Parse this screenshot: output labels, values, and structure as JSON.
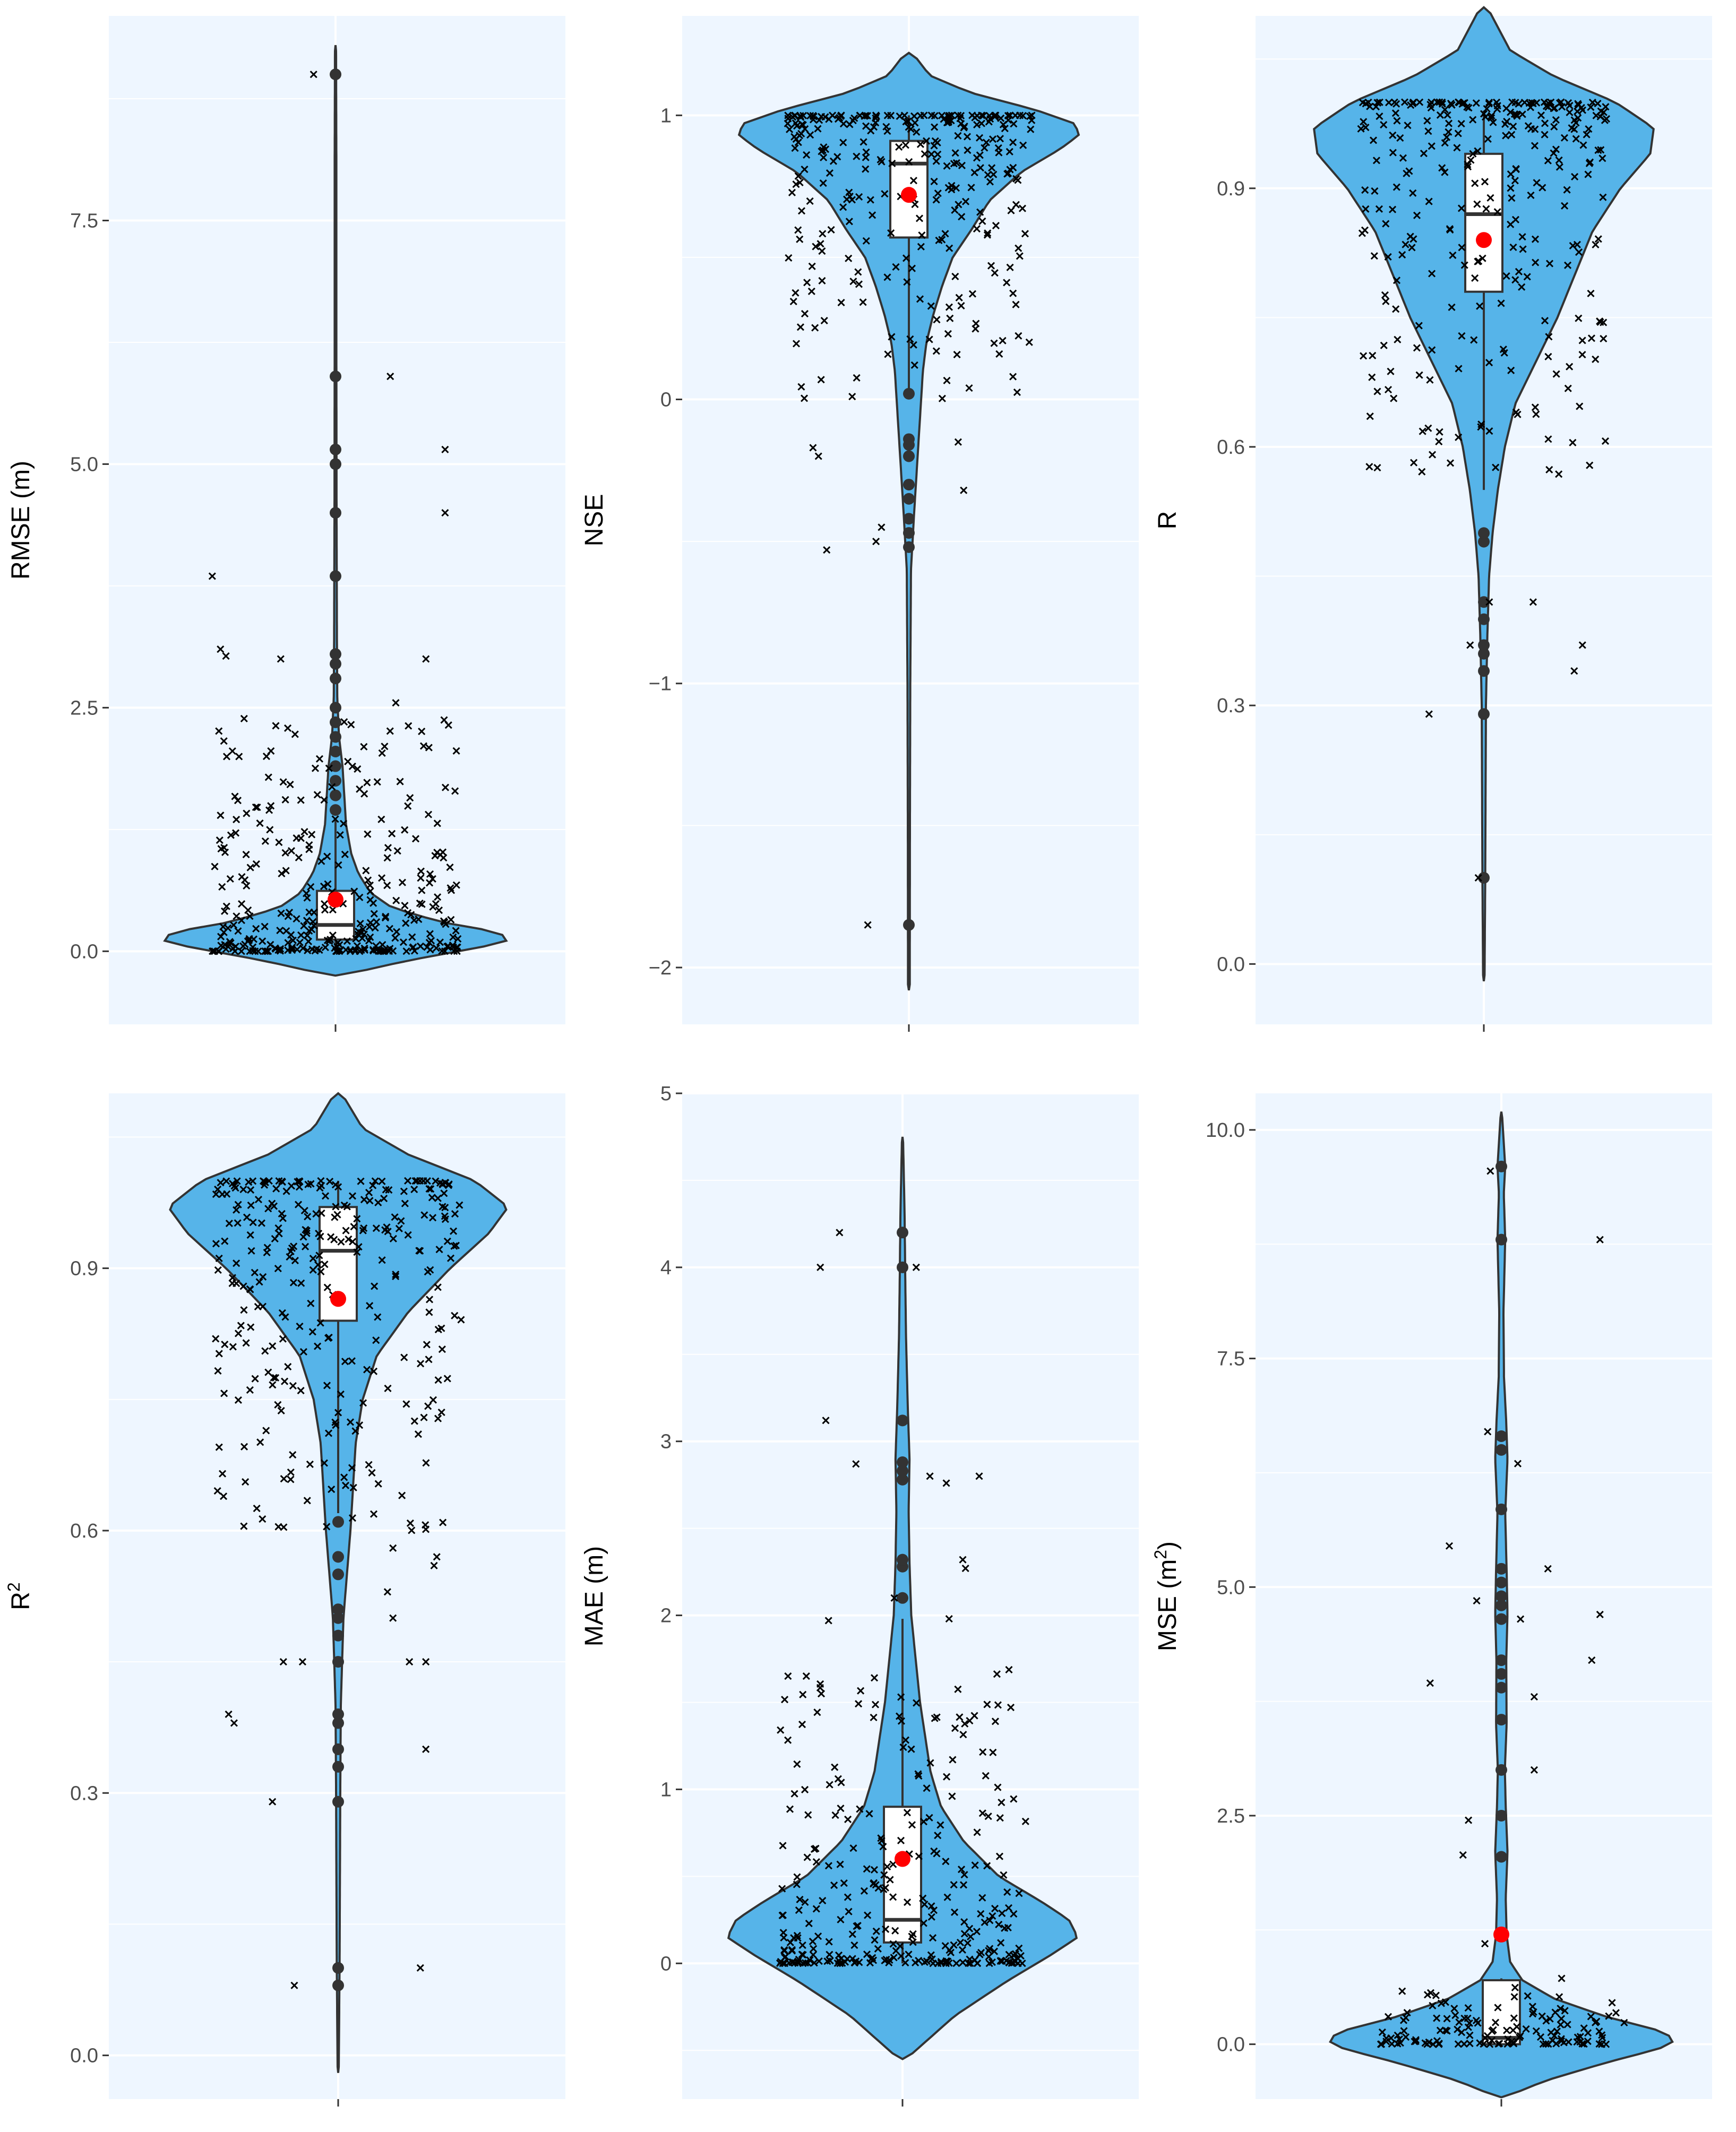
{
  "colors": {
    "panel_background": "#eef6ff",
    "grid": "#ffffff",
    "violin_fill": "#56b4e9",
    "violin_outline": "#333333",
    "box_fill": "#ffffff",
    "mean_point": "#ff0000",
    "jitter": "#000000"
  },
  "chart_data": [
    {
      "type": "violin",
      "ylabel": "RMSE (m)",
      "ylabel_sup": "",
      "ylim": [
        -0.75,
        9.6
      ],
      "yticks": [
        0,
        2.5,
        5,
        7.5
      ],
      "ytick_labels": [
        "0.0",
        "2.5",
        "5.0",
        "7.5"
      ],
      "violin_range": [
        -0.25,
        9.3
      ],
      "density_profile": [
        [
          -0.25,
          0.03
        ],
        [
          -0.1,
          0.4
        ],
        [
          0.05,
          0.85
        ],
        [
          0.12,
          1.0
        ],
        [
          0.2,
          0.92
        ],
        [
          0.3,
          0.6
        ],
        [
          0.45,
          0.32
        ],
        [
          0.6,
          0.2
        ],
        [
          0.8,
          0.13
        ],
        [
          1.0,
          0.09
        ],
        [
          1.3,
          0.06
        ],
        [
          1.6,
          0.05
        ],
        [
          1.9,
          0.04
        ],
        [
          2.2,
          0.02
        ],
        [
          2.6,
          0.01
        ],
        [
          3.2,
          0.008
        ],
        [
          4.5,
          0.006
        ],
        [
          6.0,
          0.005
        ],
        [
          8.0,
          0.005
        ],
        [
          9.3,
          0.003
        ]
      ],
      "box": {
        "q1": 0.12,
        "median": 0.27,
        "q3": 0.62,
        "whisker_low": 0.0,
        "whisker_high": 1.35
      },
      "mean": 0.53,
      "outliers": [
        1.45,
        1.6,
        1.75,
        1.9,
        2.05,
        2.2,
        2.35,
        2.5,
        2.8,
        2.95,
        3.05,
        3.85,
        4.5,
        5.0,
        5.15,
        5.9,
        9.0
      ],
      "jitter": {
        "count": 330,
        "seed": 11,
        "min": 0.0,
        "max": 2.4,
        "skew": 3.2,
        "width": 0.45,
        "extra": [
          [
            -0.45,
            3.85
          ],
          [
            -0.42,
            3.1
          ],
          [
            -0.4,
            3.03
          ],
          [
            -0.2,
            3.0
          ],
          [
            0.2,
            5.9
          ],
          [
            0.33,
            3.0
          ],
          [
            0.4,
            4.5
          ],
          [
            0.4,
            5.15
          ],
          [
            -0.08,
            9.0
          ],
          [
            0.22,
            2.55
          ]
        ]
      }
    },
    {
      "type": "violin",
      "ylabel": "NSE",
      "ylabel_sup": "",
      "ylim": [
        -2.2,
        1.35
      ],
      "yticks": [
        -2,
        -1,
        0,
        1
      ],
      "ytick_labels": [
        "−2",
        "−1",
        "0",
        "1"
      ],
      "violin_range": [
        -2.08,
        1.22
      ],
      "density_profile": [
        [
          -2.08,
          0.005
        ],
        [
          -1.5,
          0.006
        ],
        [
          -1.0,
          0.008
        ],
        [
          -0.6,
          0.012
        ],
        [
          -0.4,
          0.03
        ],
        [
          -0.2,
          0.05
        ],
        [
          0.0,
          0.07
        ],
        [
          0.1,
          0.08
        ],
        [
          0.2,
          0.1
        ],
        [
          0.3,
          0.14
        ],
        [
          0.4,
          0.19
        ],
        [
          0.5,
          0.25
        ],
        [
          0.6,
          0.36
        ],
        [
          0.7,
          0.46
        ],
        [
          0.8,
          0.64
        ],
        [
          0.88,
          0.86
        ],
        [
          0.93,
          0.97
        ],
        [
          0.97,
          0.95
        ],
        [
          1.02,
          0.72
        ],
        [
          1.08,
          0.35
        ],
        [
          1.14,
          0.12
        ],
        [
          1.22,
          0.02
        ]
      ],
      "box": {
        "q1": 0.57,
        "median": 0.83,
        "q3": 0.91,
        "whisker_low": 0.03,
        "whisker_high": 1.0
      },
      "mean": 0.72,
      "outliers": [
        -1.85,
        -0.52,
        -0.47,
        -0.42,
        -0.35,
        -0.3,
        -0.2,
        -0.16,
        -0.14,
        0.02
      ],
      "jitter": {
        "count": 300,
        "seed": 23,
        "min": 0.0,
        "max": 1.0,
        "skew": -2.6,
        "width": 0.45,
        "extra": [
          [
            -0.3,
            -0.53
          ],
          [
            -0.35,
            -0.17
          ],
          [
            -0.33,
            -0.2
          ],
          [
            -0.12,
            -0.5
          ],
          [
            -0.1,
            -0.45
          ],
          [
            0.2,
            -0.32
          ],
          [
            0.18,
            -0.15
          ],
          [
            -0.15,
            -1.85
          ],
          [
            0.22,
            0.04
          ],
          [
            0.33,
            0.16
          ],
          [
            0.38,
            0.08
          ]
        ]
      }
    },
    {
      "type": "violin",
      "ylabel": "R",
      "ylabel_sup": "",
      "ylim": [
        -0.07,
        1.1
      ],
      "yticks": [
        0,
        0.3,
        0.6,
        0.9
      ],
      "ytick_labels": [
        "0.0",
        "0.3",
        "0.6",
        "0.9"
      ],
      "violin_range": [
        -0.02,
        1.11
      ],
      "density_profile": [
        [
          -0.02,
          0.004
        ],
        [
          0.1,
          0.008
        ],
        [
          0.2,
          0.01
        ],
        [
          0.3,
          0.012
        ],
        [
          0.38,
          0.02
        ],
        [
          0.45,
          0.03
        ],
        [
          0.5,
          0.05
        ],
        [
          0.55,
          0.08
        ],
        [
          0.6,
          0.12
        ],
        [
          0.65,
          0.18
        ],
        [
          0.7,
          0.3
        ],
        [
          0.75,
          0.42
        ],
        [
          0.8,
          0.52
        ],
        [
          0.85,
          0.62
        ],
        [
          0.9,
          0.78
        ],
        [
          0.94,
          0.95
        ],
        [
          0.97,
          0.97
        ],
        [
          1.0,
          0.75
        ],
        [
          1.03,
          0.4
        ],
        [
          1.06,
          0.15
        ],
        [
          1.11,
          0.02
        ]
      ],
      "box": {
        "q1": 0.78,
        "median": 0.87,
        "q3": 0.94,
        "whisker_low": 0.55,
        "whisker_high": 0.99
      },
      "mean": 0.84,
      "outliers": [
        0.1,
        0.29,
        0.34,
        0.36,
        0.37,
        0.4,
        0.42,
        0.49,
        0.5
      ],
      "jitter": {
        "count": 300,
        "seed": 37,
        "min": 0.55,
        "max": 1.0,
        "skew": -2.4,
        "width": 0.45,
        "extra": [
          [
            -0.2,
            0.29
          ],
          [
            -0.02,
            0.1
          ],
          [
            0.02,
            0.42
          ],
          [
            0.18,
            0.42
          ],
          [
            0.36,
            0.37
          ],
          [
            0.33,
            0.34
          ],
          [
            -0.05,
            0.37
          ]
        ]
      }
    },
    {
      "type": "violin",
      "ylabel": "R",
      "ylabel_sup": "2",
      "ylim": [
        -0.05,
        1.1
      ],
      "yticks": [
        0,
        0.3,
        0.6,
        0.9
      ],
      "ytick_labels": [
        "0.0",
        "0.3",
        "0.6",
        "0.9"
      ],
      "violin_range": [
        -0.02,
        1.1
      ],
      "density_profile": [
        [
          -0.02,
          0.003
        ],
        [
          0.1,
          0.008
        ],
        [
          0.2,
          0.01
        ],
        [
          0.3,
          0.012
        ],
        [
          0.4,
          0.015
        ],
        [
          0.5,
          0.03
        ],
        [
          0.55,
          0.05
        ],
        [
          0.6,
          0.07
        ],
        [
          0.65,
          0.085
        ],
        [
          0.7,
          0.1
        ],
        [
          0.75,
          0.14
        ],
        [
          0.8,
          0.22
        ],
        [
          0.85,
          0.4
        ],
        [
          0.9,
          0.64
        ],
        [
          0.94,
          0.86
        ],
        [
          0.97,
          0.97
        ],
        [
          1.0,
          0.78
        ],
        [
          1.03,
          0.4
        ],
        [
          1.06,
          0.14
        ],
        [
          1.1,
          0.02
        ]
      ],
      "box": {
        "q1": 0.84,
        "median": 0.92,
        "q3": 0.97,
        "whisker_low": 0.62,
        "whisker_high": 1.0
      },
      "mean": 0.865,
      "outliers": [
        0.08,
        0.1,
        0.29,
        0.33,
        0.35,
        0.38,
        0.39,
        0.45,
        0.48,
        0.5,
        0.51,
        0.55,
        0.57,
        0.61
      ],
      "jitter": {
        "count": 300,
        "seed": 51,
        "min": 0.6,
        "max": 1.0,
        "skew": -2.2,
        "width": 0.45,
        "extra": [
          [
            -0.4,
            0.39
          ],
          [
            -0.38,
            0.38
          ],
          [
            -0.24,
            0.29
          ],
          [
            -0.2,
            0.45
          ],
          [
            -0.13,
            0.45
          ],
          [
            -0.16,
            0.08
          ],
          [
            0.2,
            0.5
          ],
          [
            0.2,
            0.58
          ],
          [
            0.18,
            0.53
          ],
          [
            0.26,
            0.45
          ],
          [
            0.32,
            0.45
          ],
          [
            0.32,
            0.35
          ],
          [
            0.3,
            0.1
          ],
          [
            0.35,
            0.56
          ],
          [
            0.36,
            0.57
          ]
        ]
      }
    },
    {
      "type": "violin",
      "ylabel": "MAE (m)",
      "ylabel_sup": "",
      "ylim": [
        -0.78,
        5.0
      ],
      "yticks": [
        0,
        1,
        2,
        3,
        4,
        5
      ],
      "ytick_labels": [
        "0",
        "1",
        "2",
        "3",
        "4",
        "5"
      ],
      "violin_range": [
        -0.55,
        4.75
      ],
      "density_profile": [
        [
          -0.55,
          0.02
        ],
        [
          -0.3,
          0.3
        ],
        [
          -0.1,
          0.6
        ],
        [
          0.05,
          0.85
        ],
        [
          0.15,
          1.0
        ],
        [
          0.25,
          0.95
        ],
        [
          0.35,
          0.8
        ],
        [
          0.5,
          0.55
        ],
        [
          0.7,
          0.35
        ],
        [
          0.9,
          0.22
        ],
        [
          1.1,
          0.16
        ],
        [
          1.3,
          0.13
        ],
        [
          1.5,
          0.1
        ],
        [
          1.8,
          0.07
        ],
        [
          2.0,
          0.05
        ],
        [
          2.3,
          0.04
        ],
        [
          2.6,
          0.035
        ],
        [
          2.9,
          0.04
        ],
        [
          3.2,
          0.03
        ],
        [
          3.6,
          0.02
        ],
        [
          4.0,
          0.015
        ],
        [
          4.3,
          0.012
        ],
        [
          4.75,
          0.003
        ]
      ],
      "box": {
        "q1": 0.12,
        "median": 0.25,
        "q3": 0.9,
        "whisker_low": 0.0,
        "whisker_high": 1.98
      },
      "mean": 0.6,
      "outliers": [
        2.1,
        2.28,
        2.32,
        2.78,
        2.83,
        2.88,
        3.12,
        4.0,
        4.2
      ],
      "jitter": {
        "count": 300,
        "seed": 67,
        "min": 0.0,
        "max": 1.7,
        "skew": 2.6,
        "width": 0.45,
        "extra": [
          [
            -0.3,
            4.0
          ],
          [
            -0.23,
            4.2
          ],
          [
            -0.28,
            3.12
          ],
          [
            -0.17,
            2.87
          ],
          [
            0.05,
            4.0
          ],
          [
            0.1,
            2.8
          ],
          [
            0.16,
            2.76
          ],
          [
            0.28,
            2.8
          ],
          [
            0.22,
            2.32
          ],
          [
            0.23,
            2.27
          ],
          [
            -0.27,
            1.97
          ],
          [
            0.17,
            1.98
          ],
          [
            -0.03,
            2.1
          ]
        ]
      }
    },
    {
      "type": "violin",
      "ylabel": "MSE (m",
      "ylabel_sup": "2",
      "ylabel_suffix": ")",
      "ylim": [
        -0.6,
        10.4
      ],
      "yticks": [
        0,
        2.5,
        5,
        7.5,
        10
      ],
      "ytick_labels": [
        "0.0",
        "2.5",
        "5.0",
        "7.5",
        "10.0"
      ],
      "violin_range": [
        -0.58,
        10.2
      ],
      "density_profile": [
        [
          -0.58,
          0.02
        ],
        [
          -0.4,
          0.25
        ],
        [
          -0.2,
          0.6
        ],
        [
          -0.05,
          0.9
        ],
        [
          0.05,
          1.0
        ],
        [
          0.15,
          0.9
        ],
        [
          0.3,
          0.6
        ],
        [
          0.5,
          0.3
        ],
        [
          0.7,
          0.12
        ],
        [
          0.9,
          0.05
        ],
        [
          1.2,
          0.03
        ],
        [
          1.6,
          0.025
        ],
        [
          2.1,
          0.035
        ],
        [
          2.6,
          0.025
        ],
        [
          3.0,
          0.02
        ],
        [
          3.5,
          0.03
        ],
        [
          4.2,
          0.028
        ],
        [
          4.7,
          0.035
        ],
        [
          5.2,
          0.03
        ],
        [
          5.8,
          0.022
        ],
        [
          6.4,
          0.035
        ],
        [
          6.8,
          0.028
        ],
        [
          7.3,
          0.015
        ],
        [
          8.0,
          0.012
        ],
        [
          8.8,
          0.022
        ],
        [
          9.3,
          0.014
        ],
        [
          9.6,
          0.022
        ],
        [
          10.2,
          0.003
        ]
      ],
      "box": {
        "q1": 0.0,
        "median": 0.07,
        "q3": 0.7,
        "whisker_low": 0.0,
        "whisker_high": 0.72
      },
      "mean": 1.2,
      "outliers": [
        2.05,
        2.5,
        3.0,
        3.55,
        3.9,
        4.05,
        4.2,
        4.65,
        4.8,
        4.9,
        5.05,
        5.2,
        5.85,
        6.5,
        6.65,
        8.8,
        9.6
      ],
      "jitter": {
        "count": 130,
        "seed": 83,
        "min": 0.0,
        "max": 0.6,
        "skew": 2.4,
        "width": 0.45,
        "extra": [
          [
            -0.19,
            5.45
          ],
          [
            -0.26,
            3.95
          ],
          [
            -0.12,
            2.45
          ],
          [
            -0.14,
            2.07
          ],
          [
            -0.05,
            6.7
          ],
          [
            -0.09,
            4.85
          ],
          [
            -0.04,
            9.55
          ],
          [
            0.06,
            6.35
          ],
          [
            0.07,
            4.65
          ],
          [
            0.12,
            3.8
          ],
          [
            0.12,
            3.0
          ],
          [
            0.17,
            5.2
          ],
          [
            0.36,
            8.8
          ],
          [
            0.36,
            4.7
          ],
          [
            0.33,
            4.2
          ],
          [
            -0.06,
            1.1
          ],
          [
            0.05,
            0.62
          ],
          [
            0.22,
            0.72
          ]
        ]
      }
    }
  ]
}
